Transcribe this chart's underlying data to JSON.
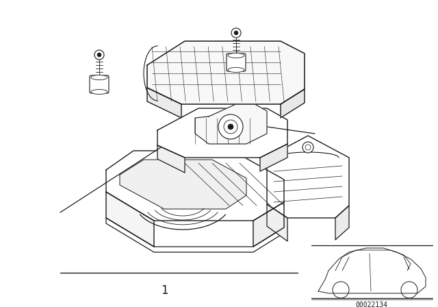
{
  "background_color": "#ffffff",
  "line_color": "#1a1a1a",
  "figure_width": 6.4,
  "figure_height": 4.48,
  "dpi": 100,
  "part_number_label": "1",
  "diagram_code": "00022134"
}
